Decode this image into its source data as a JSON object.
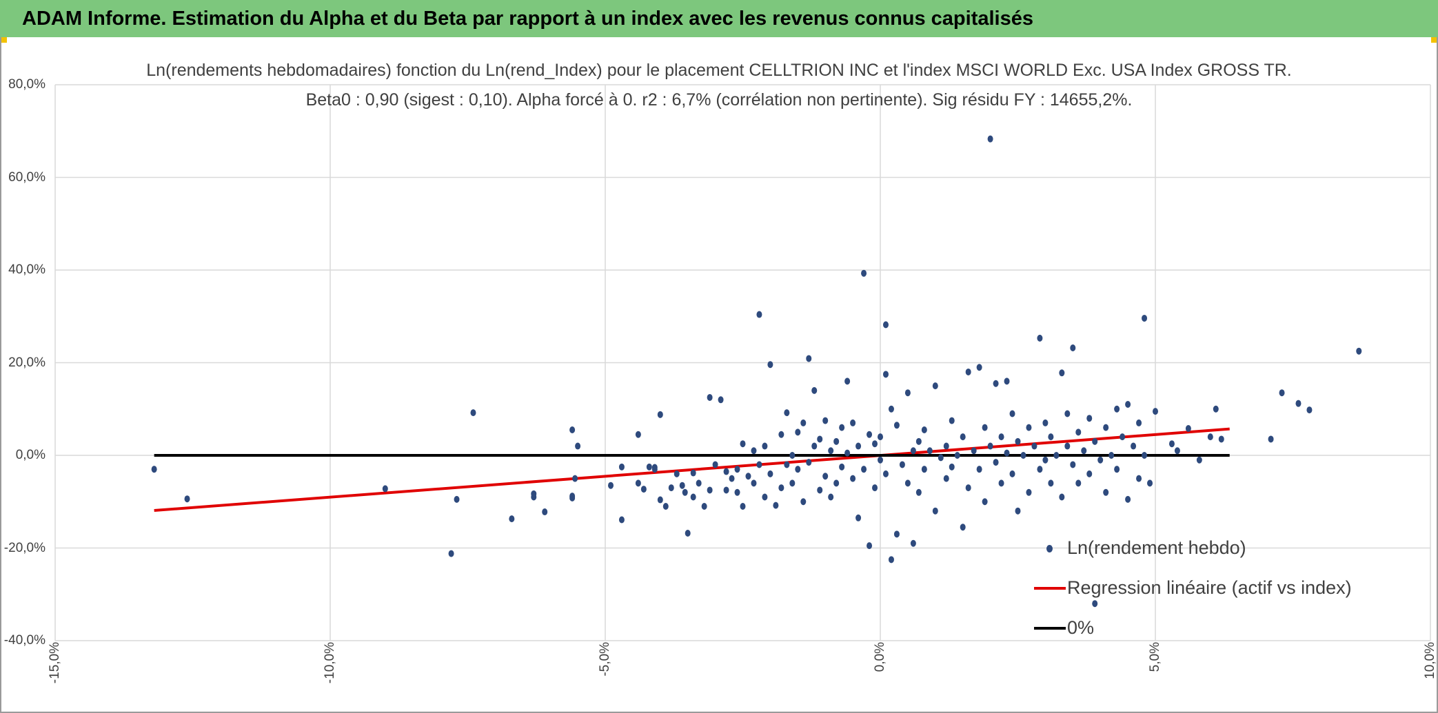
{
  "header": {
    "title": "ADAM Informe. Estimation du Alpha et du Beta par rapport à un index avec les revenus connus capitalisés"
  },
  "chart_data": {
    "type": "scatter",
    "title": "Ln(rendements hebdomadaires) fonction du Ln(rend_Index) pour le placement CELLTRION INC et l'index MSCI WORLD Exc. USA Index GROSS TR.",
    "subtitle": "Beta0 : 0,90 (sigest : 0,10). Alpha forcé à 0. r2 : 6,7% (corrélation non pertinente). Sig résidu FY : 14655,2%.",
    "xlabel": "",
    "ylabel": "",
    "xlim": [
      -0.15,
      0.1
    ],
    "ylim": [
      -0.4,
      0.8
    ],
    "x_ticks": [
      -0.15,
      -0.1,
      -0.05,
      0.0,
      0.05,
      0.1
    ],
    "x_tick_labels": [
      "-15,0%",
      "-10,0%",
      "-5,0%",
      "0,0%",
      "5,0%",
      "10,0%"
    ],
    "y_ticks": [
      -0.4,
      -0.2,
      0.0,
      0.2,
      0.4,
      0.6,
      0.8
    ],
    "y_tick_labels": [
      "-40,0%",
      "-20,0%",
      "0,0%",
      "20,0%",
      "40,0%",
      "60,0%",
      "80,0%"
    ],
    "grid": true,
    "legend_position": "bottom-right",
    "beta": 0.9,
    "series": [
      {
        "name": "Ln(rendement hebdo)",
        "kind": "scatter",
        "color": "#2e4a7d",
        "points": [
          [
            -0.132,
            -0.03
          ],
          [
            -0.126,
            -0.094
          ],
          [
            -0.09,
            -0.072
          ],
          [
            -0.078,
            -0.212
          ],
          [
            -0.077,
            -0.095
          ],
          [
            -0.074,
            0.092
          ],
          [
            -0.067,
            -0.137
          ],
          [
            -0.063,
            -0.083
          ],
          [
            -0.063,
            -0.09
          ],
          [
            -0.061,
            -0.122
          ],
          [
            -0.056,
            0.055
          ],
          [
            -0.056,
            -0.088
          ],
          [
            -0.056,
            -0.092
          ],
          [
            -0.0555,
            -0.05
          ],
          [
            -0.055,
            0.02
          ],
          [
            -0.049,
            -0.065
          ],
          [
            -0.047,
            -0.139
          ],
          [
            -0.047,
            -0.025
          ],
          [
            -0.044,
            0.045
          ],
          [
            -0.044,
            -0.06
          ],
          [
            -0.043,
            -0.073
          ],
          [
            -0.042,
            -0.025
          ],
          [
            -0.041,
            -0.026
          ],
          [
            -0.041,
            -0.03
          ],
          [
            -0.04,
            -0.096
          ],
          [
            -0.04,
            0.088
          ],
          [
            -0.039,
            -0.11
          ],
          [
            -0.038,
            -0.07
          ],
          [
            -0.037,
            -0.04
          ],
          [
            -0.036,
            -0.065
          ],
          [
            -0.0355,
            -0.08
          ],
          [
            -0.035,
            -0.168
          ],
          [
            -0.034,
            -0.038
          ],
          [
            -0.034,
            -0.09
          ],
          [
            -0.033,
            -0.06
          ],
          [
            -0.032,
            -0.11
          ],
          [
            -0.031,
            -0.075
          ],
          [
            -0.031,
            0.125
          ],
          [
            -0.03,
            -0.02
          ],
          [
            -0.029,
            0.12
          ],
          [
            -0.028,
            -0.035
          ],
          [
            -0.028,
            -0.075
          ],
          [
            -0.027,
            -0.05
          ],
          [
            -0.026,
            -0.03
          ],
          [
            -0.026,
            -0.08
          ],
          [
            -0.025,
            -0.11
          ],
          [
            -0.025,
            0.025
          ],
          [
            -0.024,
            -0.045
          ],
          [
            -0.023,
            0.01
          ],
          [
            -0.023,
            -0.06
          ],
          [
            -0.022,
            0.304
          ],
          [
            -0.022,
            -0.02
          ],
          [
            -0.021,
            0.02
          ],
          [
            -0.021,
            -0.09
          ],
          [
            -0.02,
            0.196
          ],
          [
            -0.02,
            -0.04
          ],
          [
            -0.019,
            -0.108
          ],
          [
            -0.018,
            0.045
          ],
          [
            -0.018,
            -0.07
          ],
          [
            -0.017,
            0.092
          ],
          [
            -0.017,
            -0.02
          ],
          [
            -0.016,
            0.0
          ],
          [
            -0.016,
            -0.06
          ],
          [
            -0.015,
            0.05
          ],
          [
            -0.015,
            -0.03
          ],
          [
            -0.014,
            0.07
          ],
          [
            -0.014,
            -0.1
          ],
          [
            -0.013,
            0.209
          ],
          [
            -0.013,
            -0.015
          ],
          [
            -0.012,
            0.14
          ],
          [
            -0.012,
            0.02
          ],
          [
            -0.011,
            -0.075
          ],
          [
            -0.011,
            0.035
          ],
          [
            -0.01,
            -0.045
          ],
          [
            -0.01,
            0.075
          ],
          [
            -0.009,
            -0.09
          ],
          [
            -0.009,
            0.01
          ],
          [
            -0.008,
            0.03
          ],
          [
            -0.008,
            -0.06
          ],
          [
            -0.007,
            0.06
          ],
          [
            -0.007,
            -0.025
          ],
          [
            -0.006,
            0.16
          ],
          [
            -0.006,
            0.005
          ],
          [
            -0.005,
            -0.05
          ],
          [
            -0.005,
            0.07
          ],
          [
            -0.004,
            -0.135
          ],
          [
            -0.004,
            0.02
          ],
          [
            -0.003,
            0.393
          ],
          [
            -0.003,
            -0.03
          ],
          [
            -0.002,
            -0.195
          ],
          [
            -0.002,
            0.045
          ],
          [
            -0.001,
            -0.07
          ],
          [
            -0.001,
            0.025
          ],
          [
            0.0,
            -0.01
          ],
          [
            0.0,
            0.04
          ],
          [
            0.001,
            0.282
          ],
          [
            0.001,
            0.175
          ],
          [
            0.001,
            -0.04
          ],
          [
            0.002,
            -0.225
          ],
          [
            0.002,
            0.1
          ],
          [
            0.003,
            -0.17
          ],
          [
            0.003,
            0.065
          ],
          [
            0.004,
            -0.02
          ],
          [
            0.005,
            0.135
          ],
          [
            0.005,
            -0.06
          ],
          [
            0.006,
            -0.19
          ],
          [
            0.006,
            0.01
          ],
          [
            0.007,
            0.03
          ],
          [
            0.007,
            -0.08
          ],
          [
            0.008,
            0.055
          ],
          [
            0.008,
            -0.03
          ],
          [
            0.009,
            0.01
          ],
          [
            0.01,
            -0.12
          ],
          [
            0.01,
            0.15
          ],
          [
            0.011,
            -0.005
          ],
          [
            0.012,
            0.02
          ],
          [
            0.012,
            -0.05
          ],
          [
            0.013,
            0.075
          ],
          [
            0.013,
            -0.025
          ],
          [
            0.014,
            0.0
          ],
          [
            0.015,
            -0.155
          ],
          [
            0.015,
            0.04
          ],
          [
            0.016,
            -0.07
          ],
          [
            0.016,
            0.18
          ],
          [
            0.017,
            0.01
          ],
          [
            0.018,
            -0.03
          ],
          [
            0.018,
            0.19
          ],
          [
            0.019,
            0.06
          ],
          [
            0.019,
            -0.1
          ],
          [
            0.02,
            0.02
          ],
          [
            0.02,
            0.683
          ],
          [
            0.021,
            -0.015
          ],
          [
            0.021,
            0.155
          ],
          [
            0.022,
            0.04
          ],
          [
            0.022,
            -0.06
          ],
          [
            0.023,
            0.005
          ],
          [
            0.023,
            0.16
          ],
          [
            0.024,
            0.09
          ],
          [
            0.024,
            -0.04
          ],
          [
            0.025,
            0.03
          ],
          [
            0.025,
            -0.12
          ],
          [
            0.026,
            0.0
          ],
          [
            0.027,
            0.06
          ],
          [
            0.027,
            -0.08
          ],
          [
            0.028,
            0.02
          ],
          [
            0.029,
            0.253
          ],
          [
            0.029,
            -0.03
          ],
          [
            0.03,
            0.07
          ],
          [
            0.03,
            -0.01
          ],
          [
            0.031,
            0.04
          ],
          [
            0.031,
            -0.06
          ],
          [
            0.032,
            0.0
          ],
          [
            0.033,
            0.178
          ],
          [
            0.033,
            -0.09
          ],
          [
            0.034,
            0.09
          ],
          [
            0.034,
            0.02
          ],
          [
            0.035,
            0.232
          ],
          [
            0.035,
            -0.02
          ],
          [
            0.036,
            0.05
          ],
          [
            0.036,
            -0.06
          ],
          [
            0.037,
            0.01
          ],
          [
            0.038,
            0.08
          ],
          [
            0.038,
            -0.04
          ],
          [
            0.039,
            -0.32
          ],
          [
            0.039,
            0.03
          ],
          [
            0.04,
            -0.01
          ],
          [
            0.041,
            0.06
          ],
          [
            0.041,
            -0.08
          ],
          [
            0.042,
            0.0
          ],
          [
            0.043,
            0.1
          ],
          [
            0.043,
            -0.03
          ],
          [
            0.044,
            0.04
          ],
          [
            0.045,
            -0.095
          ],
          [
            0.045,
            0.11
          ],
          [
            0.046,
            0.02
          ],
          [
            0.047,
            -0.05
          ],
          [
            0.047,
            0.07
          ],
          [
            0.048,
            0.0
          ],
          [
            0.048,
            0.296
          ],
          [
            0.049,
            -0.06
          ],
          [
            0.05,
            0.095
          ],
          [
            0.053,
            0.025
          ],
          [
            0.054,
            0.01
          ],
          [
            0.056,
            0.058
          ],
          [
            0.058,
            -0.01
          ],
          [
            0.06,
            0.04
          ],
          [
            0.061,
            0.1
          ],
          [
            0.062,
            0.035
          ],
          [
            0.071,
            0.035
          ],
          [
            0.073,
            0.135
          ],
          [
            0.076,
            0.112
          ],
          [
            0.078,
            0.098
          ],
          [
            0.087,
            0.225
          ]
        ]
      },
      {
        "name": "Regression linéaire (actif vs index)",
        "kind": "line",
        "color": "#e00000",
        "x": [
          -0.132,
          0.0635
        ],
        "y": [
          -0.119,
          0.057
        ]
      },
      {
        "name": "0%",
        "kind": "line",
        "color": "#000000",
        "x": [
          -0.132,
          0.0635
        ],
        "y": [
          0.0,
          0.0
        ]
      }
    ]
  }
}
